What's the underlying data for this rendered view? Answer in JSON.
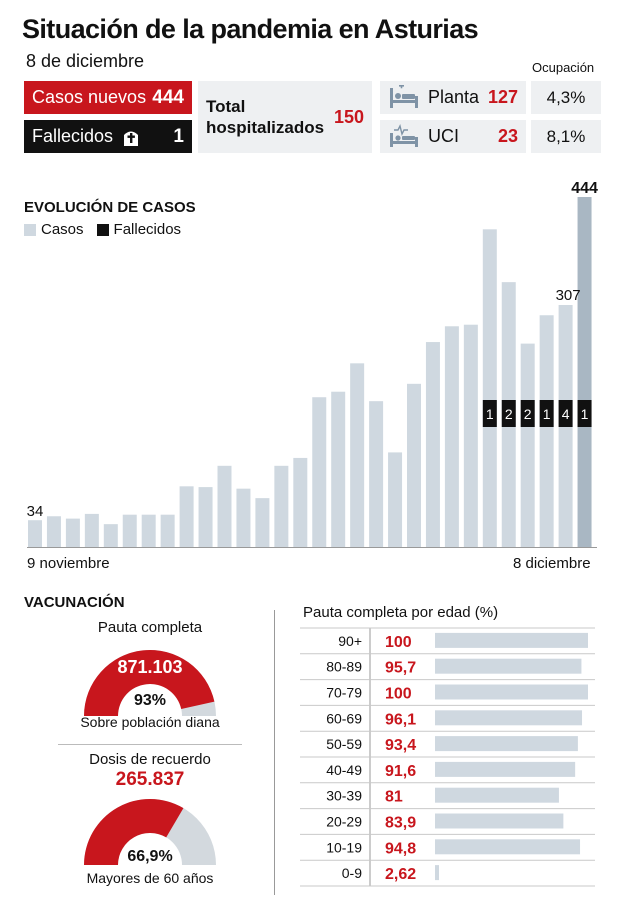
{
  "header": {
    "title": "Situación de la pandemia en Asturias",
    "date": "8 de diciembre",
    "occupancy_label": "Ocupación"
  },
  "stats": {
    "casos_nuevos": {
      "label": "Casos nuevos",
      "value": "444"
    },
    "fallecidos": {
      "label": "Fallecidos",
      "value": "1"
    },
    "total_hospitalizados": {
      "label": "Total hospitalizados",
      "value": "150"
    },
    "planta": {
      "label": "Planta",
      "value": "127",
      "occupancy": "4,3%"
    },
    "uci": {
      "label": "UCI",
      "value": "23",
      "occupancy": "8,1%"
    }
  },
  "colors": {
    "red": "#c8161d",
    "black": "#111111",
    "bar": "#cfd8e0",
    "bar_highlight": "#a9b7c3",
    "panel": "#eef0f2"
  },
  "icons": {
    "fallecidos": "cross-icon",
    "planta": "hospital-bed-icon",
    "uci": "icu-bed-icon"
  },
  "chart_data": [
    {
      "type": "bar",
      "title": "EVOLUCIÓN DE CASOS",
      "legend": [
        "Casos",
        "Fallecidos"
      ],
      "x_start_label": "9 noviembre",
      "x_end_label": "8 diciembre",
      "series": [
        {
          "name": "Casos",
          "values": [
            34,
            39,
            36,
            42,
            29,
            41,
            41,
            41,
            77,
            76,
            103,
            74,
            62,
            103,
            113,
            190,
            197,
            233,
            185,
            120,
            207,
            260,
            280,
            282,
            403,
            336,
            258,
            294,
            307,
            444
          ]
        },
        {
          "name": "Fallecidos",
          "values": [
            null,
            null,
            null,
            null,
            null,
            null,
            null,
            null,
            null,
            null,
            null,
            null,
            null,
            null,
            null,
            null,
            null,
            null,
            null,
            null,
            null,
            null,
            null,
            null,
            1,
            2,
            2,
            1,
            4,
            1
          ]
        }
      ],
      "labeled_values": [
        {
          "index": 0,
          "text": "34"
        },
        {
          "index": 28,
          "text": "307"
        },
        {
          "index": 29,
          "text": "444"
        }
      ],
      "ylim": [
        0,
        444
      ]
    },
    {
      "type": "bar",
      "title": "Pauta completa por edad (%)",
      "categories": [
        "90+",
        "80-89",
        "70-79",
        "60-69",
        "50-59",
        "40-49",
        "30-39",
        "20-29",
        "10-19",
        "0-9"
      ],
      "value_labels": [
        "100",
        "95,7",
        "100",
        "96,1",
        "93,4",
        "91,6",
        "81",
        "83,9",
        "94,8",
        "2,62"
      ],
      "values": [
        100,
        95.7,
        100,
        96.1,
        93.4,
        91.6,
        81,
        83.9,
        94.8,
        2.62
      ],
      "xlim": [
        0,
        100
      ]
    }
  ],
  "vacunacion": {
    "title": "VACUNACIÓN",
    "pauta": {
      "label": "Pauta completa",
      "value": "871.103",
      "pct_text": "93%",
      "pct": 93,
      "sub": "Sobre población diana"
    },
    "dosis": {
      "label": "Dosis de recuerdo",
      "value": "265.837",
      "pct_text": "66,9%",
      "pct": 66.9,
      "sub": "Mayores de 60 años"
    }
  }
}
